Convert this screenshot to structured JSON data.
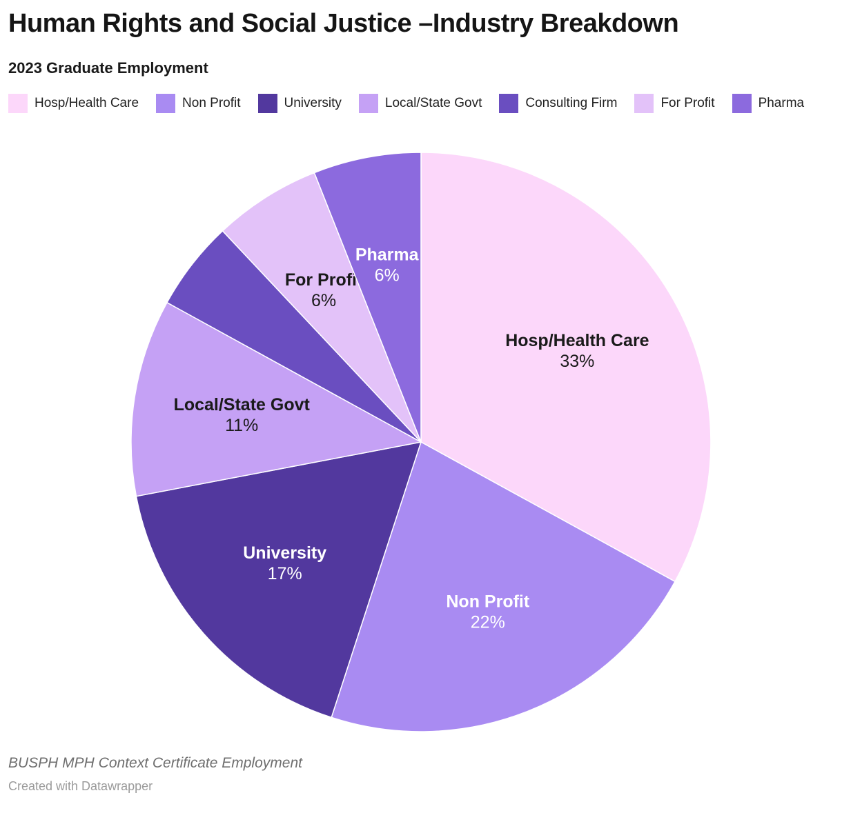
{
  "header": {
    "title": "Human Rights and Social Justice –Industry Breakdown",
    "subtitle": "2023 Graduate Employment"
  },
  "footer": {
    "note": "BUSPH MPH Context Certificate Employment",
    "attribution": "Created with Datawrapper"
  },
  "chart_data": {
    "type": "pie",
    "title": "Human Rights and Social Justice –Industry Breakdown",
    "subtitle": "2023 Graduate Employment",
    "legend_position": "top",
    "labels": "inside",
    "direction": "clockwise",
    "start_angle_deg": 0,
    "categories": [
      "Hosp/Health Care",
      "Non Profit",
      "University",
      "Local/State Govt",
      "Consulting Firm",
      "For Profit",
      "Pharma"
    ],
    "values": [
      33,
      22,
      17,
      11,
      5,
      6,
      6
    ],
    "slices": [
      {
        "label": "Hosp/Health Care",
        "value": 33,
        "display": "33%",
        "color": "#fcd7fa",
        "label_color": "#1a1a1a",
        "show_label": true
      },
      {
        "label": "Non Profit",
        "value": 22,
        "display": "22%",
        "color": "#a98bf2",
        "label_color": "#ffffff",
        "show_label": true
      },
      {
        "label": "University",
        "value": 17,
        "display": "17%",
        "color": "#52389e",
        "label_color": "#ffffff",
        "show_label": true
      },
      {
        "label": "Local/State Govt",
        "value": 11,
        "display": "11%",
        "color": "#c5a1f5",
        "label_color": "#1a1a1a",
        "show_label": true
      },
      {
        "label": "Consulting Firm",
        "value": 5,
        "display": "5%",
        "color": "#6a4ec0",
        "label_color": "#ffffff",
        "show_label": false
      },
      {
        "label": "For Profit",
        "value": 6,
        "display": "6%",
        "color": "#e3c2f9",
        "label_color": "#1a1a1a",
        "show_label": true
      },
      {
        "label": "Pharma",
        "value": 6,
        "display": "6%",
        "color": "#8c6ade",
        "label_color": "#ffffff",
        "show_label": true
      }
    ]
  }
}
